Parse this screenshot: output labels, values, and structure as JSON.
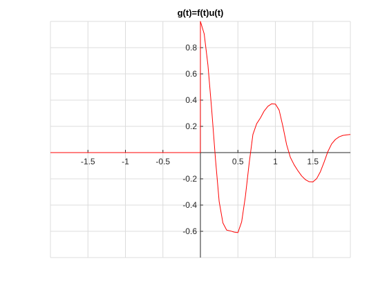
{
  "chart_data": {
    "type": "line",
    "title": "g(t)=f(t)u(t)",
    "xlabel": "",
    "ylabel": "",
    "xlim": [
      -2,
      2
    ],
    "ylim": [
      -0.8,
      1
    ],
    "grid": true,
    "x_ticks": [
      -1.5,
      -1,
      -0.5,
      0.5,
      1,
      1.5
    ],
    "x_tick_labels": [
      "-1.5",
      "-1",
      "-0.5",
      "0.5",
      "1",
      "1.5"
    ],
    "y_ticks": [
      -0.6,
      -0.4,
      -0.2,
      0.2,
      0.4,
      0.6,
      0.8
    ],
    "y_tick_labels": [
      "-0.6",
      "-0.4",
      "-0.2",
      "0.2",
      "0.4",
      "0.6",
      "0.8"
    ],
    "series": [
      {
        "color": "#ff0000",
        "x": [
          -2,
          -1.5,
          -1,
          -0.5,
          -0.001,
          0,
          0.05,
          0.1,
          0.15,
          0.2,
          0.25,
          0.3,
          0.35,
          0.4,
          0.45,
          0.5,
          0.55,
          0.6,
          0.65,
          0.7,
          0.75,
          0.8,
          0.85,
          0.9,
          0.95,
          1.0,
          1.05,
          1.1,
          1.15,
          1.2,
          1.25,
          1.3,
          1.35,
          1.4,
          1.45,
          1.5,
          1.55,
          1.6,
          1.65,
          1.7,
          1.75,
          1.8,
          1.85,
          1.9,
          1.95,
          2.0
        ],
        "y": [
          0,
          0,
          0,
          0,
          0,
          1.0,
          0.906,
          0.669,
          0.331,
          -0.044,
          -0.373,
          -0.536,
          -0.591,
          -0.597,
          -0.606,
          -0.61,
          -0.528,
          -0.333,
          -0.083,
          0.138,
          0.22,
          0.264,
          0.317,
          0.353,
          0.372,
          0.37,
          0.324,
          0.2,
          0.06,
          -0.037,
          -0.093,
          -0.138,
          -0.178,
          -0.206,
          -0.222,
          -0.224,
          -0.199,
          -0.146,
          -0.072,
          0.008,
          0.066,
          0.1,
          0.12,
          0.131,
          0.135,
          0.138
        ]
      }
    ]
  }
}
